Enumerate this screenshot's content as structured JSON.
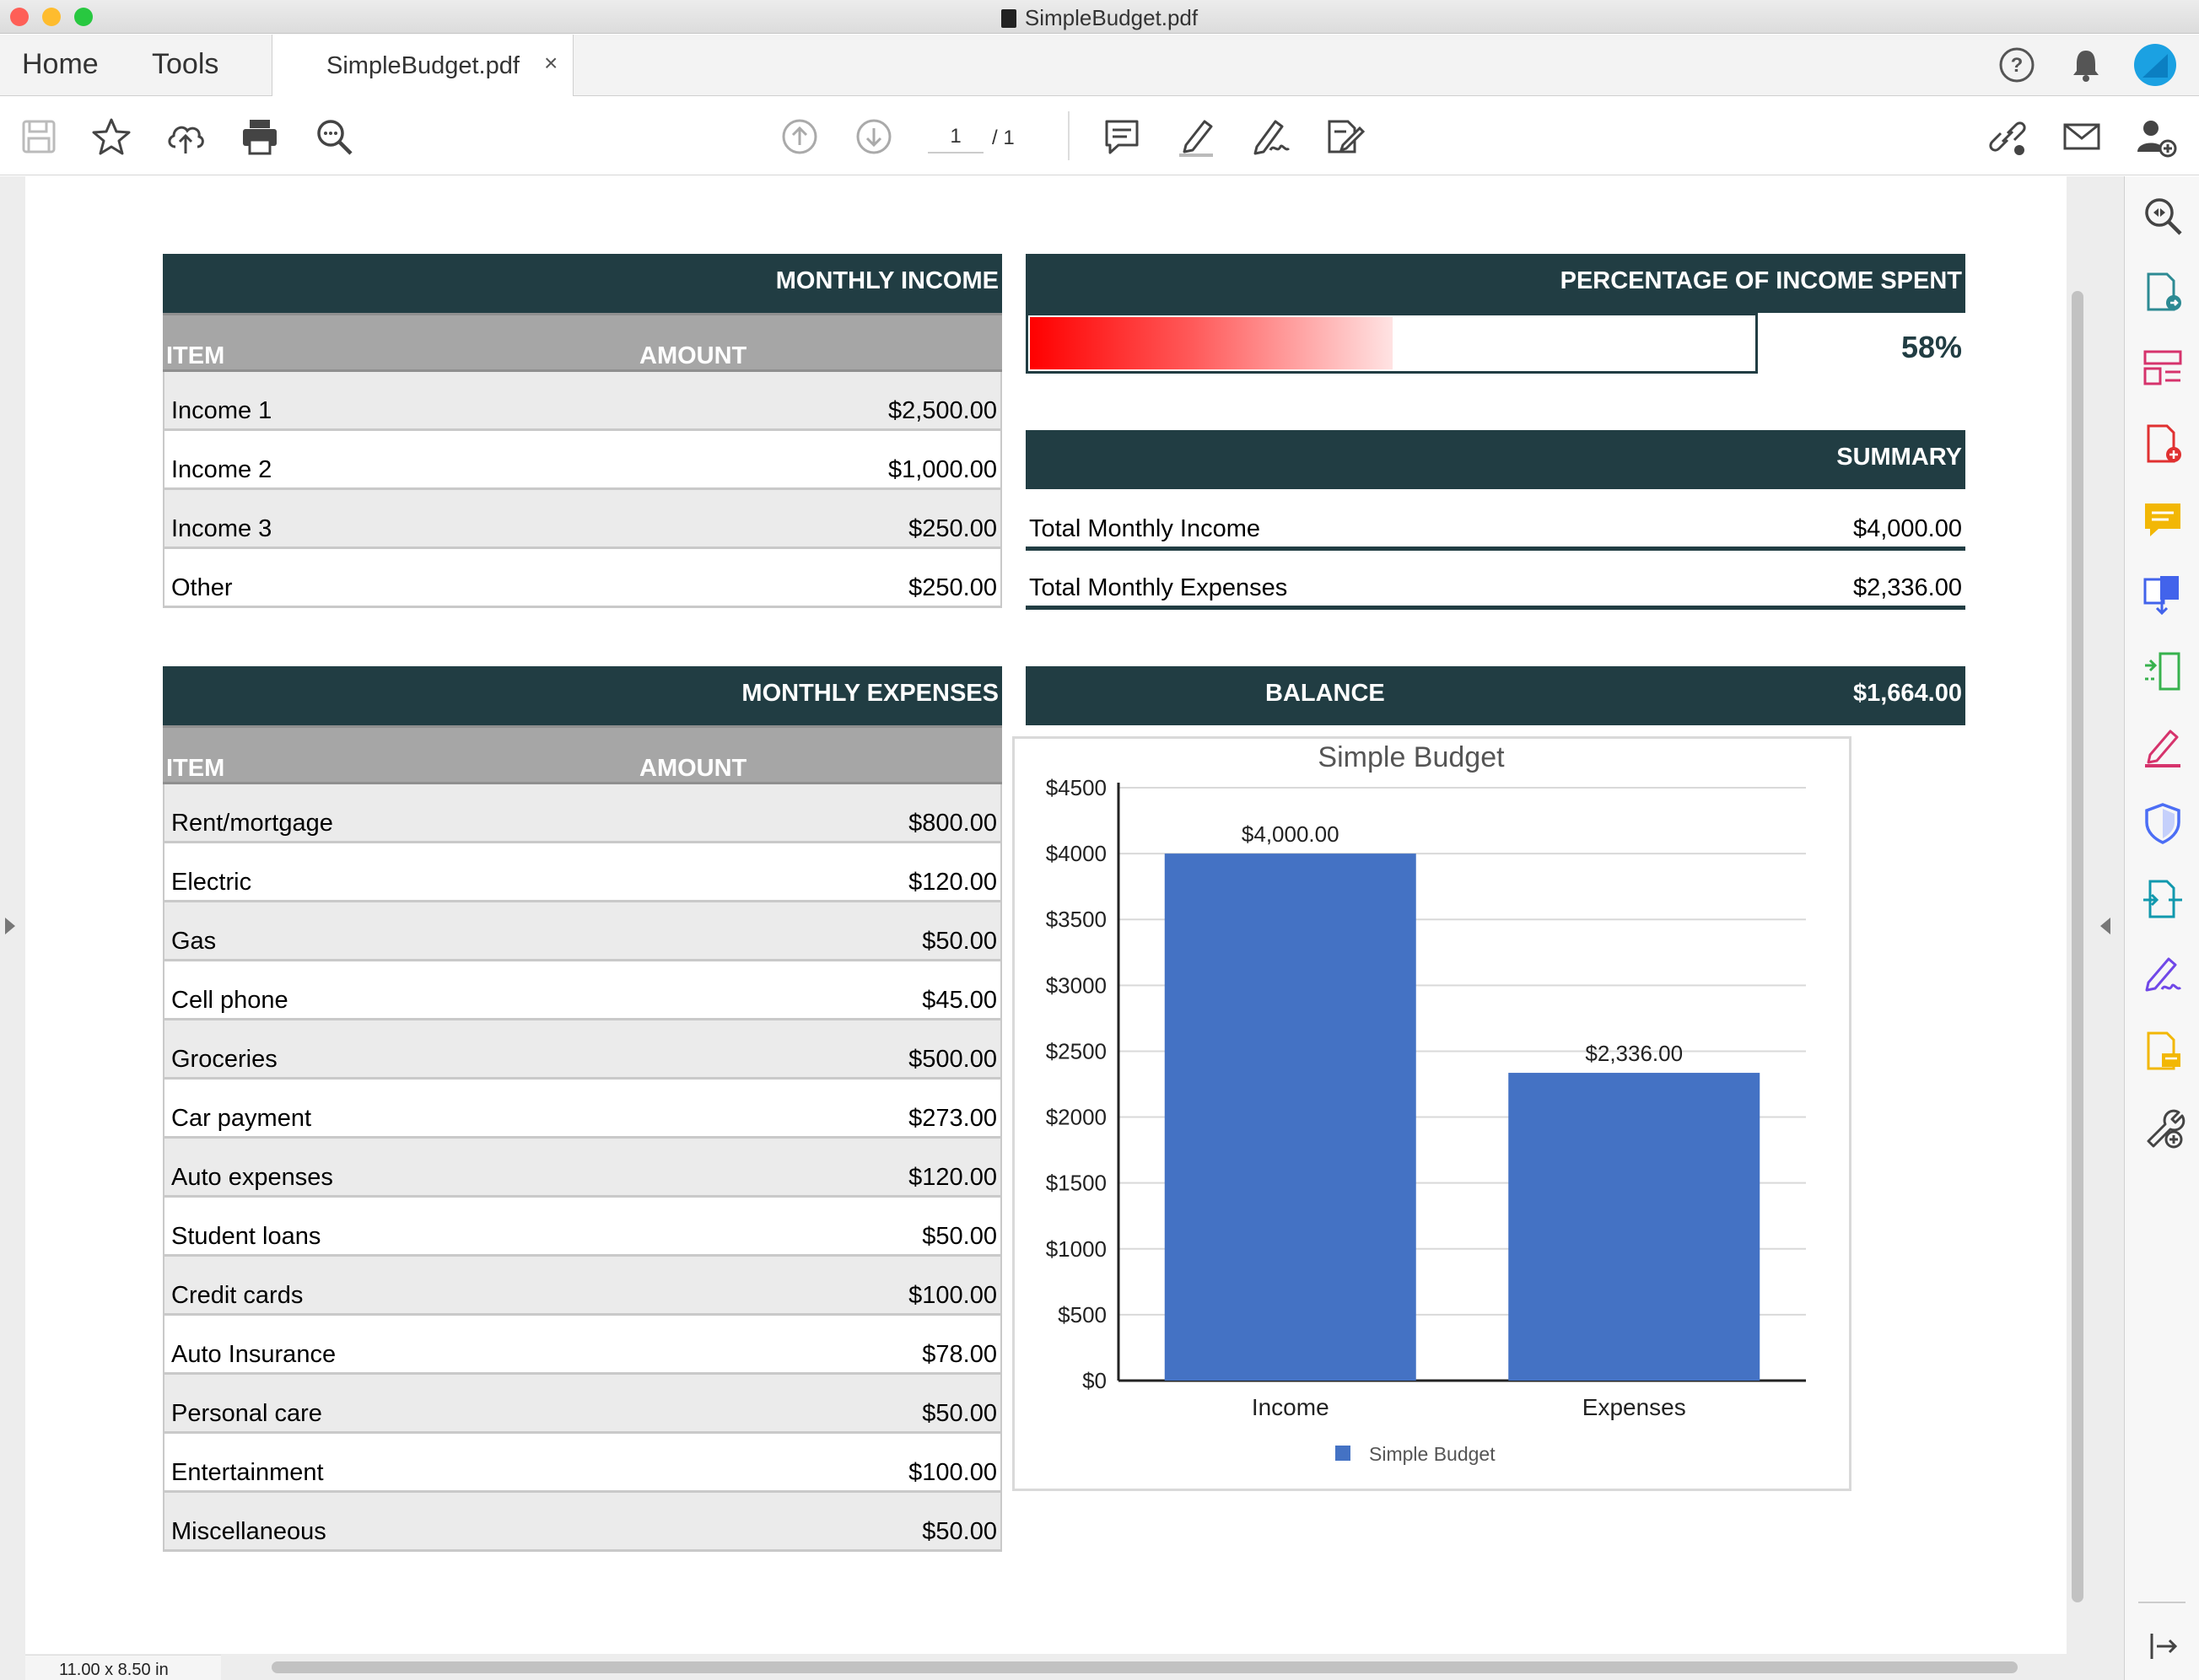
{
  "window": {
    "title": "SimpleBudget.pdf"
  },
  "tabs": {
    "home": "Home",
    "tools": "Tools",
    "document": "SimpleBudget.pdf",
    "close": "×"
  },
  "pager": {
    "current": "1",
    "total": "/ 1"
  },
  "status": {
    "page_size": "11.00 x 8.50 in"
  },
  "colors": {
    "header": "#213d43",
    "bar": "#4472c4",
    "column_header": "#a6a6a6",
    "row_alt": "#ebebeb"
  },
  "toolbar_icons": [
    "save-icon",
    "bookmark-star-icon",
    "cloud-upload-icon",
    "print-icon",
    "zoom-search-icon",
    "previous-page-icon",
    "next-page-icon",
    "comment-icon",
    "highlight-icon",
    "sign-icon",
    "edit-pdf-icon",
    "share-link-icon",
    "email-icon",
    "add-user-icon"
  ],
  "header_icons": [
    "help-icon",
    "notifications-bell-icon",
    "account-avatar-icon"
  ],
  "right_pane_icons": [
    "enhance-scan-icon",
    "export-pdf-icon",
    "organize-pages-icon",
    "create-pdf-icon",
    "comment-tool-icon",
    "combine-files-icon",
    "compress-pdf-icon",
    "fill-sign-icon",
    "protect-icon",
    "send-for-review-icon",
    "request-signatures-icon",
    "edit-note-icon",
    "more-tools-icon",
    "collapse-pane-icon"
  ],
  "income": {
    "title": "MONTHLY INCOME",
    "col_item": "ITEM",
    "col_amount": "AMOUNT",
    "rows": [
      {
        "item": "Income 1",
        "amount": "$2,500.00"
      },
      {
        "item": "Income 2",
        "amount": "$1,000.00"
      },
      {
        "item": "Income 3",
        "amount": "$250.00"
      },
      {
        "item": "Other",
        "amount": "$250.00"
      }
    ]
  },
  "expenses": {
    "title": "MONTHLY EXPENSES",
    "col_item": "ITEM",
    "col_amount": "AMOUNT",
    "rows": [
      {
        "item": "Rent/mortgage",
        "amount": "$800.00"
      },
      {
        "item": "Electric",
        "amount": "$120.00"
      },
      {
        "item": "Gas",
        "amount": "$50.00"
      },
      {
        "item": "Cell phone",
        "amount": "$45.00"
      },
      {
        "item": "Groceries",
        "amount": "$500.00"
      },
      {
        "item": "Car payment",
        "amount": "$273.00"
      },
      {
        "item": "Auto expenses",
        "amount": "$120.00"
      },
      {
        "item": "Student loans",
        "amount": "$50.00"
      },
      {
        "item": "Credit cards",
        "amount": "$100.00"
      },
      {
        "item": "Auto Insurance",
        "amount": "$78.00"
      },
      {
        "item": "Personal care",
        "amount": "$50.00"
      },
      {
        "item": "Entertainment",
        "amount": "$100.00"
      },
      {
        "item": "Miscellaneous",
        "amount": "$50.00"
      }
    ]
  },
  "percentage": {
    "title": "PERCENTAGE OF INCOME SPENT",
    "value": "58%",
    "fraction": 0.58
  },
  "summary": {
    "title": "SUMMARY",
    "rows": [
      {
        "label": "Total Monthly Income",
        "value": "$4,000.00"
      },
      {
        "label": "Total Monthly Expenses",
        "value": "$2,336.00"
      }
    ]
  },
  "balance": {
    "label": "BALANCE",
    "value": "$1,664.00"
  },
  "chart_data": {
    "type": "bar",
    "title": "Simple Budget",
    "categories": [
      "Income",
      "Expenses"
    ],
    "values": [
      4000,
      2336
    ],
    "data_labels": [
      "$4,000.00",
      "$2,336.00"
    ],
    "series": [
      {
        "name": "Simple Budget",
        "values": [
          4000,
          2336
        ]
      }
    ],
    "ylim": [
      0,
      4500
    ],
    "yticks": [
      0,
      500,
      1000,
      1500,
      2000,
      2500,
      3000,
      3500,
      4000,
      4500
    ],
    "ytick_labels": [
      "$0",
      "$500",
      "$1000",
      "$1500",
      "$2000",
      "$2500",
      "$3000",
      "$3500",
      "$4000",
      "$4500"
    ],
    "grid": true,
    "legend": "bottom"
  }
}
